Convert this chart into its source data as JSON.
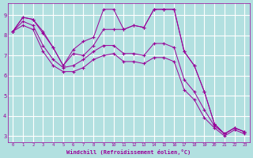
{
  "xlabel": "Windchill (Refroidissement éolien,°C)",
  "bg_color": "#b2e0e0",
  "grid_color": "#ffffff",
  "line_color": "#990099",
  "marker": "+",
  "xlim_min": -0.5,
  "xlim_max": 23.5,
  "ylim_min": 2.7,
  "ylim_max": 9.6,
  "yticks": [
    3,
    4,
    5,
    6,
    7,
    8,
    9
  ],
  "xticks": [
    0,
    1,
    2,
    3,
    4,
    5,
    6,
    7,
    8,
    9,
    10,
    11,
    12,
    13,
    14,
    15,
    16,
    17,
    18,
    19,
    20,
    21,
    22,
    23
  ],
  "lines": [
    [
      8.2,
      8.9,
      8.8,
      8.2,
      7.4,
      6.5,
      7.3,
      7.7,
      7.9,
      9.3,
      9.3,
      8.3,
      8.5,
      8.4,
      9.3,
      9.3,
      9.3,
      7.2,
      6.5,
      5.2,
      3.6,
      3.1,
      3.4,
      3.2
    ],
    [
      8.2,
      8.9,
      8.8,
      8.1,
      7.4,
      6.5,
      7.1,
      7.0,
      7.5,
      8.3,
      8.3,
      8.3,
      8.5,
      8.4,
      9.3,
      9.3,
      9.3,
      7.2,
      6.5,
      5.2,
      3.6,
      3.1,
      3.4,
      3.2
    ],
    [
      8.2,
      8.7,
      8.5,
      7.5,
      6.8,
      6.4,
      6.5,
      6.8,
      7.2,
      7.5,
      7.5,
      7.1,
      7.1,
      7.0,
      7.6,
      7.6,
      7.4,
      5.8,
      5.2,
      4.3,
      3.5,
      3.1,
      3.4,
      3.2
    ],
    [
      8.2,
      8.5,
      8.3,
      7.2,
      6.5,
      6.2,
      6.2,
      6.4,
      6.8,
      7.0,
      7.1,
      6.7,
      6.7,
      6.6,
      6.9,
      6.9,
      6.7,
      5.3,
      4.8,
      3.9,
      3.4,
      3.0,
      3.3,
      3.1
    ]
  ]
}
